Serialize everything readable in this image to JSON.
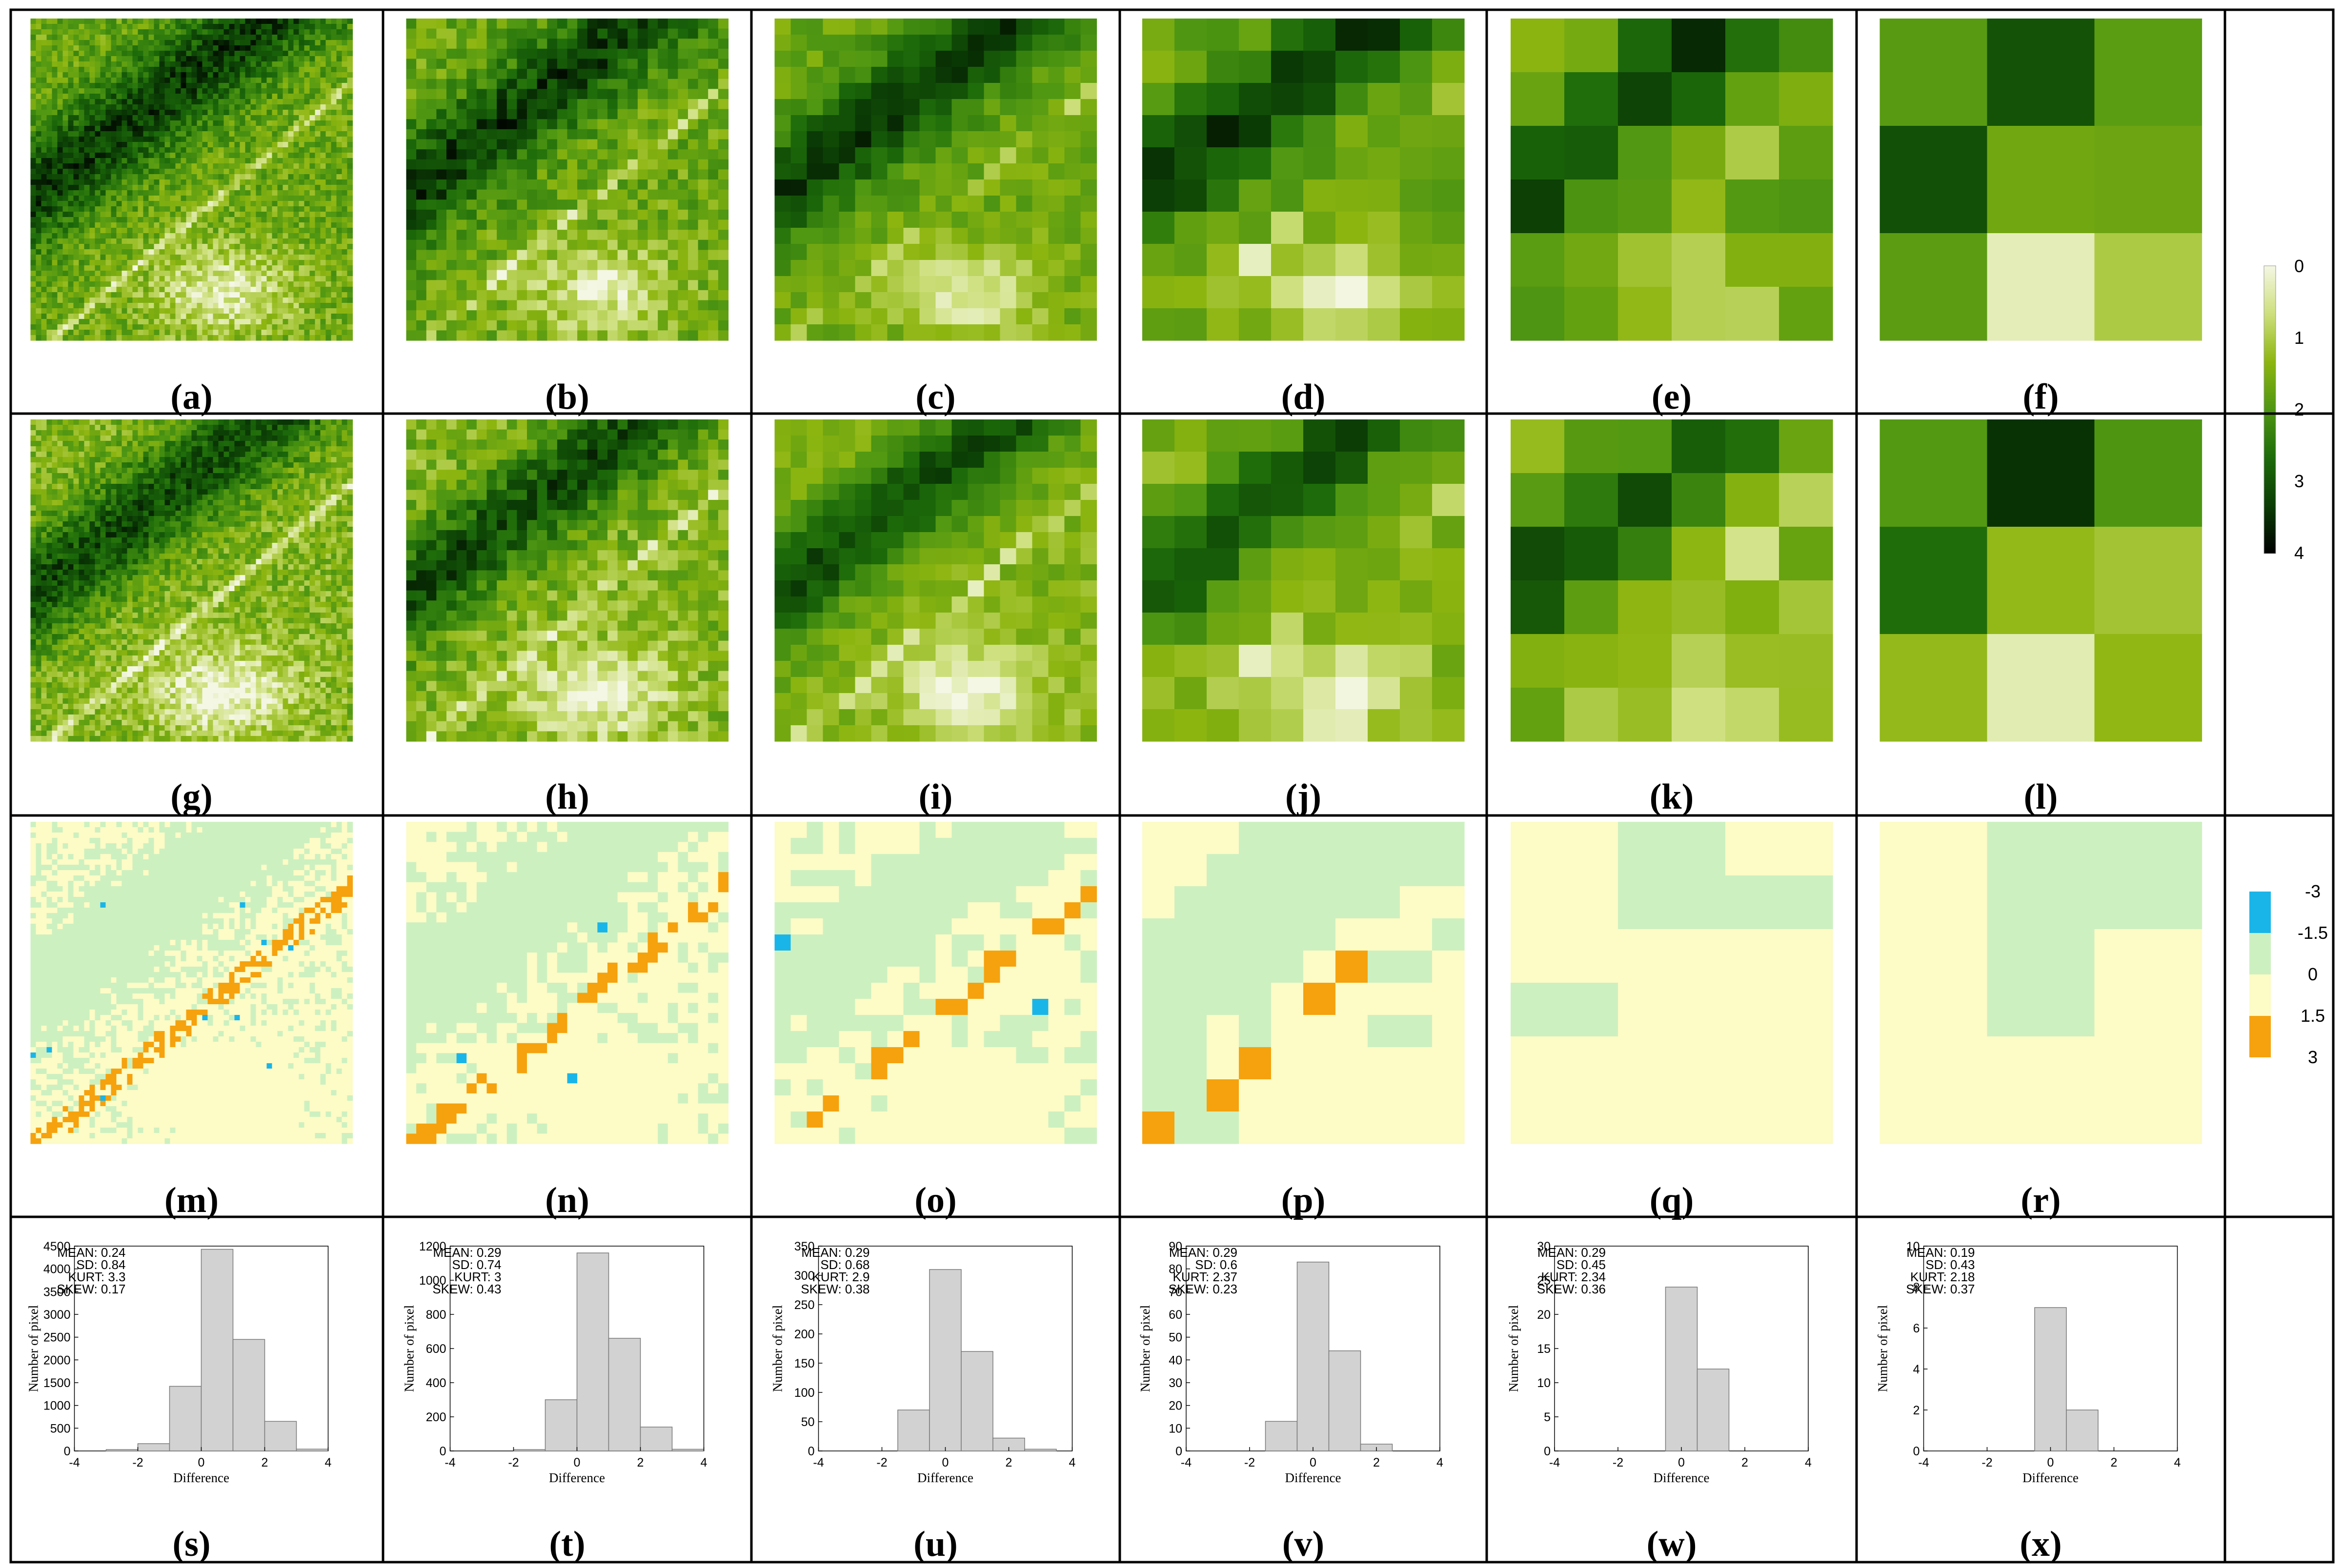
{
  "colors": {
    "ndvi_ramp": [
      "#f4f7e4",
      "#cddf7c",
      "#8db510",
      "#4e9612",
      "#1d6b0a",
      "#0b3d05",
      "#000000"
    ],
    "diff_classes": [
      "#1ab5e8",
      "#cdf0c0",
      "#fdfbc6",
      "#f5a20e"
    ],
    "hist_bar": "#d2d2d2",
    "grid": "#000000"
  },
  "colorbars": [
    {
      "id": "value-colorbar",
      "ticks": [
        "0",
        "1",
        "2",
        "3",
        "4"
      ]
    },
    {
      "id": "difference-colorbar",
      "ticks": [
        "-3",
        "-1.5",
        "0",
        "1.5",
        "3"
      ]
    }
  ],
  "panels": {
    "row1": [
      {
        "label": "(a)"
      },
      {
        "label": "(b)"
      },
      {
        "label": "(c)"
      },
      {
        "label": "(d)"
      },
      {
        "label": "(e)"
      },
      {
        "label": "(f)"
      }
    ],
    "row2": [
      {
        "label": "(g)"
      },
      {
        "label": "(h)"
      },
      {
        "label": "(i)"
      },
      {
        "label": "(j)"
      },
      {
        "label": "(k)"
      },
      {
        "label": "(l)"
      }
    ],
    "row3": [
      {
        "label": "(m)"
      },
      {
        "label": "(n)"
      },
      {
        "label": "(o)"
      },
      {
        "label": "(p)"
      },
      {
        "label": "(q)"
      },
      {
        "label": "(r)"
      }
    ]
  },
  "chart_data": [
    {
      "type": "bar",
      "label": "(s)",
      "xlabel": "Difference",
      "ylabel": "Number of pixel",
      "xlim": [
        -4,
        4
      ],
      "xticks": [
        "-4",
        "-2",
        "0",
        "2",
        "4"
      ],
      "ylim": [
        0,
        4500
      ],
      "yticks": [
        "0",
        "500",
        "1000",
        "1500",
        "2000",
        "2500",
        "3000",
        "3500",
        "4000",
        "4500"
      ],
      "bins": [
        [
          -3,
          -2,
          30
        ],
        [
          -2,
          -1,
          160
        ],
        [
          -1,
          0,
          1420
        ],
        [
          0,
          1,
          4430
        ],
        [
          1,
          2,
          2450
        ],
        [
          2,
          3,
          650
        ],
        [
          3,
          4,
          40
        ]
      ],
      "stats": [
        "MEAN: 0.24",
        "SD: 0.84",
        "KURT: 3.3",
        "SKEW: 0.17"
      ]
    },
    {
      "type": "bar",
      "label": "(t)",
      "xlabel": "Difference",
      "ylabel": "Number of pixel",
      "xlim": [
        -4,
        4
      ],
      "xticks": [
        "-4",
        "-2",
        "0",
        "2",
        "4"
      ],
      "ylim": [
        0,
        1200
      ],
      "yticks": [
        "0",
        "200",
        "400",
        "600",
        "800",
        "1000",
        "1200"
      ],
      "bins": [
        [
          -2,
          -1,
          8
        ],
        [
          -1,
          0,
          300
        ],
        [
          0,
          1,
          1160
        ],
        [
          1,
          2,
          660
        ],
        [
          2,
          3,
          140
        ],
        [
          3,
          4,
          10
        ]
      ],
      "stats": [
        "MEAN: 0.29",
        "SD: 0.74",
        "KURT: 3",
        "SKEW: 0.43"
      ]
    },
    {
      "type": "bar",
      "label": "(u)",
      "xlabel": "Difference",
      "ylabel": "Number of pixel",
      "xlim": [
        -4,
        4
      ],
      "xticks": [
        "-4",
        "-2",
        "0",
        "2",
        "4"
      ],
      "ylim": [
        0,
        350
      ],
      "yticks": [
        "0",
        "50",
        "100",
        "150",
        "200",
        "250",
        "300",
        "350"
      ],
      "bins": [
        [
          -1.5,
          -0.5,
          70
        ],
        [
          -0.5,
          0.5,
          310
        ],
        [
          0.5,
          1.5,
          170
        ],
        [
          1.5,
          2.5,
          22
        ],
        [
          2.5,
          3.5,
          3
        ]
      ],
      "stats": [
        "MEAN: 0.29",
        "SD: 0.68",
        "KURT: 2.9",
        "SKEW: 0.38"
      ]
    },
    {
      "type": "bar",
      "label": "(v)",
      "xlabel": "Difference",
      "ylabel": "Number of pixel",
      "xlim": [
        -4,
        4
      ],
      "xticks": [
        "-4",
        "-2",
        "0",
        "2",
        "4"
      ],
      "ylim": [
        0,
        90
      ],
      "yticks": [
        "0",
        "10",
        "20",
        "30",
        "40",
        "50",
        "60",
        "70",
        "80",
        "90"
      ],
      "bins": [
        [
          -1.5,
          -0.5,
          13
        ],
        [
          -0.5,
          0.5,
          83
        ],
        [
          0.5,
          1.5,
          44
        ],
        [
          1.5,
          2.5,
          3
        ]
      ],
      "stats": [
        "MEAN: 0.29",
        "SD: 0.6",
        "KURT: 2.37",
        "SKEW: 0.23"
      ]
    },
    {
      "type": "bar",
      "label": "(w)",
      "xlabel": "Difference",
      "ylabel": "Number of pixel",
      "xlim": [
        -4,
        4
      ],
      "xticks": [
        "-4",
        "-2",
        "0",
        "2",
        "4"
      ],
      "ylim": [
        0,
        30
      ],
      "yticks": [
        "0",
        "5",
        "10",
        "15",
        "20",
        "25",
        "30"
      ],
      "bins": [
        [
          -0.5,
          0.5,
          24
        ],
        [
          0.5,
          1.5,
          12
        ]
      ],
      "stats": [
        "MEAN: 0.29",
        "SD: 0.45",
        "KURT: 2.34",
        "SKEW: 0.36"
      ]
    },
    {
      "type": "bar",
      "label": "(x)",
      "xlabel": "Difference",
      "ylabel": "Number of pixel",
      "xlim": [
        -4,
        4
      ],
      "xticks": [
        "-4",
        "-2",
        "0",
        "2",
        "4"
      ],
      "ylim": [
        0,
        10
      ],
      "yticks": [
        "0",
        "2",
        "4",
        "6",
        "8",
        "10"
      ],
      "bins": [
        [
          -0.5,
          0.5,
          7
        ],
        [
          0.5,
          1.5,
          2
        ]
      ],
      "stats": [
        "MEAN: 0.19",
        "SD: 0.43",
        "KURT: 2.18",
        "SKEW: 0.37"
      ]
    }
  ]
}
